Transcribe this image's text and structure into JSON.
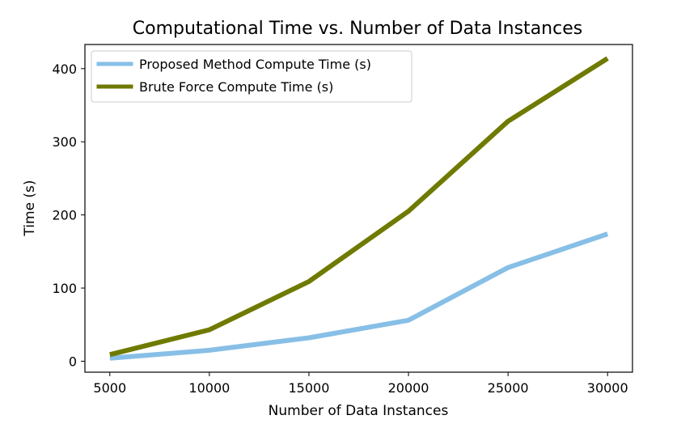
{
  "chart_data": {
    "type": "line",
    "title": "Computational Time vs. Number of Data Instances",
    "xlabel": "Number of Data Instances",
    "ylabel": "Time (s)",
    "x": [
      5000,
      10000,
      15000,
      20000,
      25000,
      30000
    ],
    "xticks": [
      "5000",
      "10000",
      "15000",
      "20000",
      "25000",
      "30000"
    ],
    "yticks": [
      "0",
      "100",
      "200",
      "300",
      "400"
    ],
    "xlim": [
      3750,
      31250
    ],
    "ylim": [
      -15,
      433
    ],
    "grid": false,
    "legend_position": "top-left",
    "series": [
      {
        "name": "Proposed Method Compute Time (s)",
        "values": [
          4,
          15,
          32,
          56,
          128,
          174
        ],
        "color": "#87bfe6"
      },
      {
        "name": "Brute Force Compute Time (s)",
        "values": [
          9,
          43,
          109,
          205,
          328,
          414
        ],
        "color": "#6f7a00"
      }
    ]
  }
}
